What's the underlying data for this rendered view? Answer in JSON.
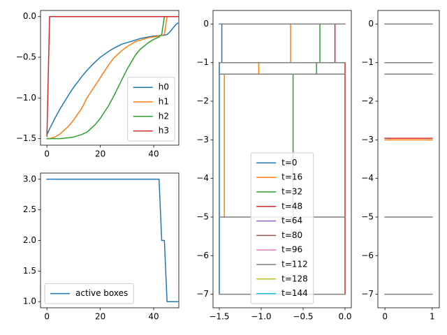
{
  "chart_data": [
    {
      "type": "line",
      "x": [
        0,
        1,
        3,
        5,
        8,
        10,
        13,
        15,
        18,
        20,
        23,
        25,
        28,
        30,
        33,
        35,
        38,
        40,
        42,
        43,
        44,
        45,
        46,
        47,
        48,
        49
      ],
      "series": [
        {
          "name": "h0",
          "color": "#1f77b4",
          "values": [
            -1.45,
            -1.38,
            -1.25,
            -1.13,
            -0.97,
            -0.87,
            -0.74,
            -0.66,
            -0.56,
            -0.5,
            -0.43,
            -0.39,
            -0.34,
            -0.32,
            -0.29,
            -0.27,
            -0.25,
            -0.24,
            -0.235,
            -0.23,
            -0.23,
            -0.22,
            -0.19,
            -0.15,
            -0.11,
            -0.08
          ]
        },
        {
          "name": "h1",
          "color": "#ff7f0e",
          "values": [
            -1.5,
            -1.5,
            -1.48,
            -1.44,
            -1.35,
            -1.27,
            -1.13,
            -1.0,
            -0.85,
            -0.75,
            -0.6,
            -0.51,
            -0.42,
            -0.37,
            -0.31,
            -0.29,
            -0.26,
            -0.25,
            -0.24,
            -0.23,
            -0.22,
            0,
            0,
            0,
            0,
            0
          ]
        },
        {
          "name": "h2",
          "color": "#2ca02c",
          "values": [
            -1.5,
            -1.5,
            -1.5,
            -1.5,
            -1.49,
            -1.48,
            -1.45,
            -1.42,
            -1.33,
            -1.25,
            -1.1,
            -0.98,
            -0.78,
            -0.65,
            -0.48,
            -0.4,
            -0.32,
            -0.28,
            -0.25,
            -0.22,
            0,
            0,
            0,
            0,
            0,
            0
          ]
        },
        {
          "name": "h3",
          "color": "#d62728",
          "values": [
            -1.47,
            0,
            0,
            0,
            0,
            0,
            0,
            0,
            0,
            0,
            0,
            0,
            0,
            0,
            0,
            0,
            0,
            0,
            0,
            0,
            0,
            0,
            0,
            0,
            0,
            0
          ]
        }
      ],
      "xlim": [
        -2.4,
        49.4
      ],
      "xticks": [
        0,
        20,
        40
      ],
      "ylim": [
        -1.58,
        0.075
      ],
      "yticks": [
        {
          "value": 0,
          "label": "0.0"
        },
        {
          "value": -0.5,
          "label": "−0.5"
        },
        {
          "value": -1,
          "label": "−1.0"
        },
        {
          "value": -1.5,
          "label": "−1.5"
        }
      ],
      "legend": "lower right"
    },
    {
      "type": "line",
      "series": [
        {
          "name": "t=0",
          "color": "#1f77b4",
          "x": [
            -1.47,
            -1.47,
            null,
            -1.5,
            -1.5
          ],
          "values": [
            0,
            -1,
            null,
            -1,
            -7
          ]
        },
        {
          "name": "t=16",
          "color": "#ff7f0e",
          "x": [
            -0.65,
            -0.65,
            null,
            -1.03,
            -1.03,
            null,
            -1.44,
            -1.44
          ],
          "values": [
            0,
            -1,
            null,
            -1,
            -1.3,
            null,
            -1.3,
            -5
          ]
        },
        {
          "name": "t=32",
          "color": "#2ca02c",
          "x": [
            -0.3,
            -0.3,
            null,
            -0.34,
            -0.34,
            null,
            -0.62,
            -0.62
          ],
          "values": [
            0,
            -1,
            null,
            -1,
            -1.3,
            null,
            -1.3,
            -5
          ]
        },
        {
          "name": "t=48",
          "color": "#d62728",
          "x": [
            -0.12,
            -0.12,
            null,
            0,
            0
          ],
          "values": [
            0,
            -1,
            null,
            -1,
            -7
          ]
        },
        {
          "name": "t=64",
          "color": "#9467bd",
          "x": [],
          "values": []
        },
        {
          "name": "t=80",
          "color": "#8c564b",
          "x": [],
          "values": []
        },
        {
          "name": "t=96",
          "color": "#e377c2",
          "x": [],
          "values": []
        },
        {
          "name": "t=112",
          "color": "#7f7f7f",
          "x": [
            -1.5,
            0,
            null,
            -1.5,
            0,
            null,
            -1.5,
            0,
            null,
            -1.5,
            0,
            null,
            -1.5,
            0
          ],
          "values": [
            0,
            0,
            null,
            -1,
            -1,
            null,
            -1.3,
            -1.3,
            null,
            -5,
            -5,
            null,
            -7,
            -7
          ]
        },
        {
          "name": "t=128",
          "color": "#bcbd22",
          "x": [],
          "values": []
        },
        {
          "name": "t=144",
          "color": "#17becf",
          "x": [],
          "values": []
        }
      ],
      "xlim": [
        -1.575,
        0.075
      ],
      "xticks": [
        {
          "value": -1.5,
          "label": "−1.5"
        },
        {
          "value": -1,
          "label": "−1.0"
        },
        {
          "value": -0.5,
          "label": "−0.5"
        },
        {
          "value": 0,
          "label": "0.0"
        }
      ],
      "ylim": [
        -7.35,
        0.35
      ],
      "yticks": [
        0,
        {
          "value": -1,
          "label": "−1"
        },
        {
          "value": -2,
          "label": "−2"
        },
        {
          "value": -3,
          "label": "−3"
        },
        {
          "value": -4,
          "label": "−4"
        },
        {
          "value": -5,
          "label": "−5"
        },
        {
          "value": -6,
          "label": "−6"
        },
        {
          "value": -7,
          "label": "−7"
        }
      ],
      "legend": "lower center"
    },
    {
      "type": "line",
      "x": [
        0,
        42,
        43,
        44,
        45,
        49
      ],
      "series": [
        {
          "name": "active boxes",
          "color": "#1f77b4",
          "values": [
            3,
            3,
            2,
            2,
            1,
            1
          ]
        }
      ],
      "xlim": [
        -2.4,
        49.4
      ],
      "xticks": [
        0,
        20,
        40
      ],
      "ylim": [
        0.9,
        3.1
      ],
      "yticks": [
        {
          "value": 3,
          "label": "3.0"
        },
        2.5,
        {
          "value": 2,
          "label": "2.0"
        },
        1.5,
        {
          "value": 1,
          "label": "1.0"
        }
      ],
      "legend": "lower left"
    },
    {
      "type": "line",
      "series": [
        {
          "color": "#7f7f7f",
          "x": [
            0,
            1,
            null,
            0,
            1,
            null,
            0,
            1,
            null,
            0,
            1,
            null,
            0,
            1
          ],
          "values": [
            0,
            0,
            null,
            -1,
            -1,
            null,
            -1.3,
            -1.3,
            null,
            -5,
            -5,
            null,
            -7,
            -7
          ]
        },
        {
          "color": "#d62728",
          "x": [
            0,
            1
          ],
          "values": [
            -2.96,
            -2.96
          ]
        },
        {
          "color": "#ff7f0e",
          "x": [
            0,
            1
          ],
          "values": [
            -3.0,
            -3.0
          ]
        }
      ],
      "xlim": [
        -0.15,
        1.15
      ],
      "xticks": [
        0,
        1
      ],
      "ylim": [
        -7.35,
        0.35
      ],
      "yticks": [
        0,
        {
          "value": -1,
          "label": "−1"
        },
        {
          "value": -2,
          "label": "−2"
        },
        {
          "value": -3,
          "label": "−3"
        },
        {
          "value": -4,
          "label": "−4"
        },
        {
          "value": -5,
          "label": "−5"
        },
        {
          "value": -6,
          "label": "−6"
        },
        {
          "value": -7,
          "label": "−7"
        }
      ]
    }
  ]
}
